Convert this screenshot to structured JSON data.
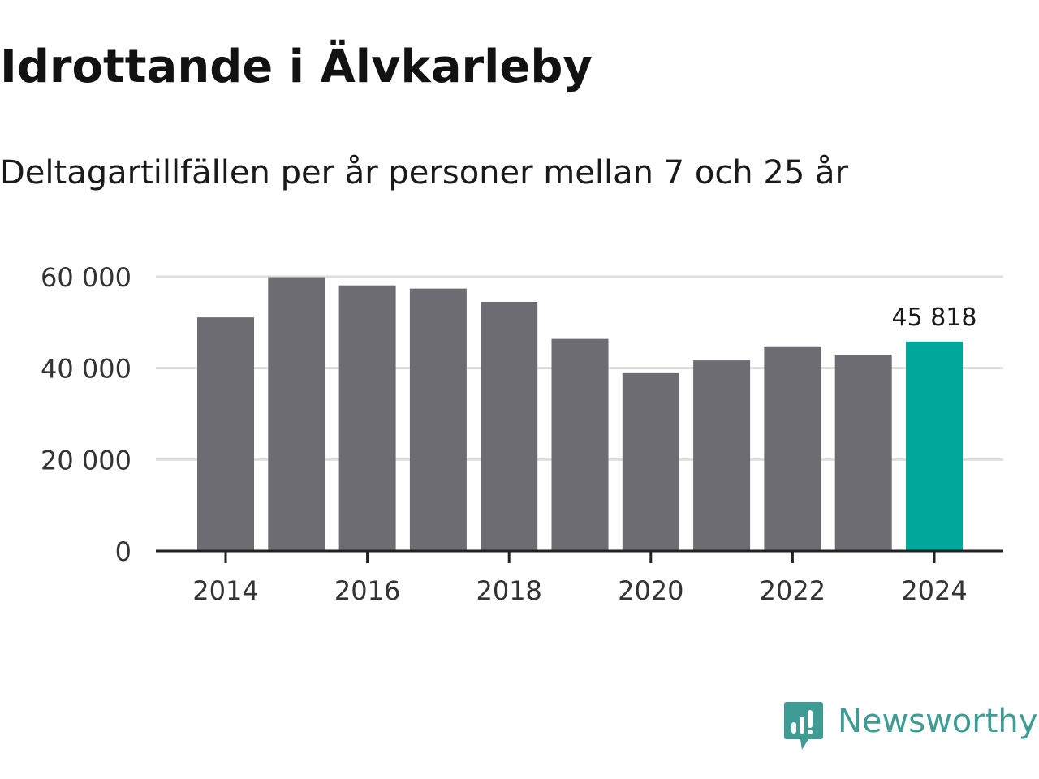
{
  "title": "Idrottande i Älvkarleby",
  "subtitle": "Deltagartillfällen per år personer mellan 7 och 25 år",
  "brand": {
    "name": "Newsworthy",
    "icon": "newsworthy-logo-icon",
    "color": "#3e9c94"
  },
  "colors": {
    "bar": "#6d6c73",
    "highlight": "#00a79b",
    "grid": "#dedede",
    "axis": "#222222"
  },
  "chart_data": {
    "type": "bar",
    "title": "Idrottande i Älvkarleby",
    "subtitle": "Deltagartillfällen per år personer mellan 7 och 25 år",
    "xlabel": "",
    "ylabel": "",
    "categories": [
      "2014",
      "2015",
      "2016",
      "2017",
      "2018",
      "2019",
      "2020",
      "2021",
      "2022",
      "2023",
      "2024"
    ],
    "values": [
      51100,
      59900,
      58100,
      57400,
      54500,
      46400,
      38900,
      41700,
      44600,
      42800,
      45818
    ],
    "highlight_index": 10,
    "highlight_label": "45 818",
    "ylim": [
      0,
      60000
    ],
    "yticks": [
      0,
      20000,
      40000,
      60000
    ],
    "ytick_labels": [
      "0",
      "20 000",
      "40 000",
      "60 000"
    ],
    "xtick_labels": [
      "2014",
      "2016",
      "2018",
      "2020",
      "2022",
      "2024"
    ],
    "grid": true,
    "legend": "none"
  }
}
